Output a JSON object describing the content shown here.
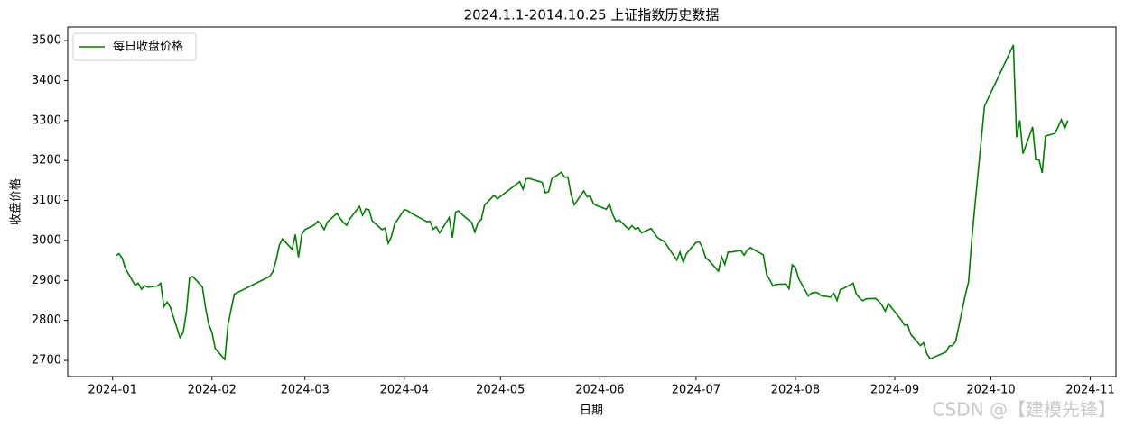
{
  "chart_data": {
    "type": "line",
    "title": "2024.1.1-2014.10.25 上证指数历史数据",
    "x_label": "日期",
    "y_label": "收盘价格",
    "legend": "upper left",
    "watermark": "CSDN @【建模先锋】",
    "x": [
      1,
      2,
      3,
      4,
      7,
      8,
      9,
      10,
      11,
      14,
      15,
      16,
      17,
      18,
      21,
      22,
      23,
      24,
      25,
      28,
      29,
      30,
      31,
      32,
      35,
      36,
      37,
      38,
      49,
      50,
      51,
      52,
      53,
      56,
      57,
      58,
      59,
      60,
      63,
      64,
      65,
      66,
      67,
      70,
      71,
      72,
      73,
      74,
      77,
      78,
      79,
      80,
      81,
      84,
      85,
      86,
      87,
      88,
      91,
      92,
      93,
      98,
      99,
      100,
      101,
      102,
      105,
      106,
      107,
      108,
      109,
      112,
      113,
      114,
      115,
      116,
      119,
      120,
      126,
      127,
      128,
      129,
      130,
      133,
      134,
      135,
      136,
      137,
      140,
      141,
      142,
      143,
      144,
      147,
      148,
      149,
      150,
      151,
      154,
      155,
      156,
      157,
      158,
      161,
      162,
      163,
      164,
      165,
      168,
      169,
      170,
      171,
      172,
      175,
      176,
      177,
      178,
      179,
      182,
      183,
      184,
      185,
      186,
      189,
      190,
      191,
      192,
      193,
      196,
      197,
      198,
      199,
      200,
      203,
      204,
      205,
      206,
      207,
      210,
      211,
      212,
      213,
      214,
      217,
      218,
      219,
      220,
      221,
      224,
      225,
      226,
      227,
      228,
      231,
      232,
      233,
      234,
      235,
      238,
      239,
      240,
      241,
      242,
      245,
      246,
      247,
      248,
      249,
      252,
      253,
      254,
      255,
      260,
      261,
      262,
      263,
      266,
      267,
      268,
      269,
      272,
      281,
      282,
      283,
      284,
      287,
      288,
      289,
      290,
      291,
      294,
      295,
      296,
      297,
      298
    ],
    "series": [
      {
        "name": "每日收盘价格",
        "color": "#008000",
        "values": [
          2962,
          2967,
          2955,
          2930,
          2888,
          2893,
          2878,
          2887,
          2883,
          2886,
          2893,
          2834,
          2846,
          2833,
          2757,
          2769,
          2820,
          2906,
          2910,
          2884,
          2831,
          2790,
          2770,
          2730,
          2702,
          2789,
          2829,
          2866,
          2910,
          2922,
          2950,
          2988,
          3004,
          2978,
          3015,
          2958,
          3015,
          3027,
          3039,
          3048,
          3040,
          3027,
          3046,
          3068,
          3055,
          3045,
          3038,
          3054,
          3085,
          3063,
          3079,
          3077,
          3049,
          3027,
          3031,
          2993,
          3010,
          3041,
          3077,
          3075,
          3069,
          3047,
          3048,
          3028,
          3034,
          3019,
          3057,
          3007,
          3071,
          3074,
          3065,
          3045,
          3021,
          3045,
          3052,
          3088,
          3113,
          3104,
          3141,
          3147,
          3128,
          3154,
          3155,
          3148,
          3145,
          3119,
          3122,
          3154,
          3171,
          3158,
          3159,
          3116,
          3089,
          3124,
          3109,
          3111,
          3092,
          3087,
          3078,
          3091,
          3065,
          3048,
          3051,
          3028,
          3037,
          3029,
          3032,
          3019,
          3030,
          3018,
          3007,
          3002,
          2998,
          2963,
          2951,
          2971,
          2945,
          2967,
          2995,
          2997,
          2982,
          2957,
          2950,
          2923,
          2959,
          2940,
          2971,
          2971,
          2975,
          2963,
          2976,
          2982,
          2977,
          2964,
          2915,
          2901,
          2886,
          2890,
          2891,
          2879,
          2939,
          2932,
          2905,
          2861,
          2868,
          2870,
          2869,
          2862,
          2858,
          2867,
          2850,
          2877,
          2880,
          2893,
          2866,
          2856,
          2849,
          2854,
          2855,
          2848,
          2838,
          2823,
          2842,
          2811,
          2802,
          2788,
          2789,
          2765,
          2737,
          2744,
          2717,
          2704,
          2721,
          2736,
          2737,
          2748,
          2863,
          2896,
          3000,
          3088,
          3336,
          3489,
          3258,
          3301,
          3217,
          3284,
          3202,
          3202,
          3169,
          3261,
          3268,
          3285,
          3302,
          3280,
          3300
        ]
      }
    ],
    "xlim": [
      -14,
      313
    ],
    "ylim": [
      2659.5,
      3534
    ],
    "xticks": [
      {
        "value": 0,
        "label": "2024-01"
      },
      {
        "value": 31,
        "label": "2024-02"
      },
      {
        "value": 60,
        "label": "2024-03"
      },
      {
        "value": 91,
        "label": "2024-04"
      },
      {
        "value": 121,
        "label": "2024-05"
      },
      {
        "value": 152,
        "label": "2024-06"
      },
      {
        "value": 182,
        "label": "2024-07"
      },
      {
        "value": 213,
        "label": "2024-08"
      },
      {
        "value": 244,
        "label": "2024-09"
      },
      {
        "value": 274,
        "label": "2024-10"
      },
      {
        "value": 305,
        "label": "2024-11"
      }
    ],
    "yticks": [
      2700,
      2800,
      2900,
      3000,
      3100,
      3200,
      3300,
      3400,
      3500
    ]
  }
}
